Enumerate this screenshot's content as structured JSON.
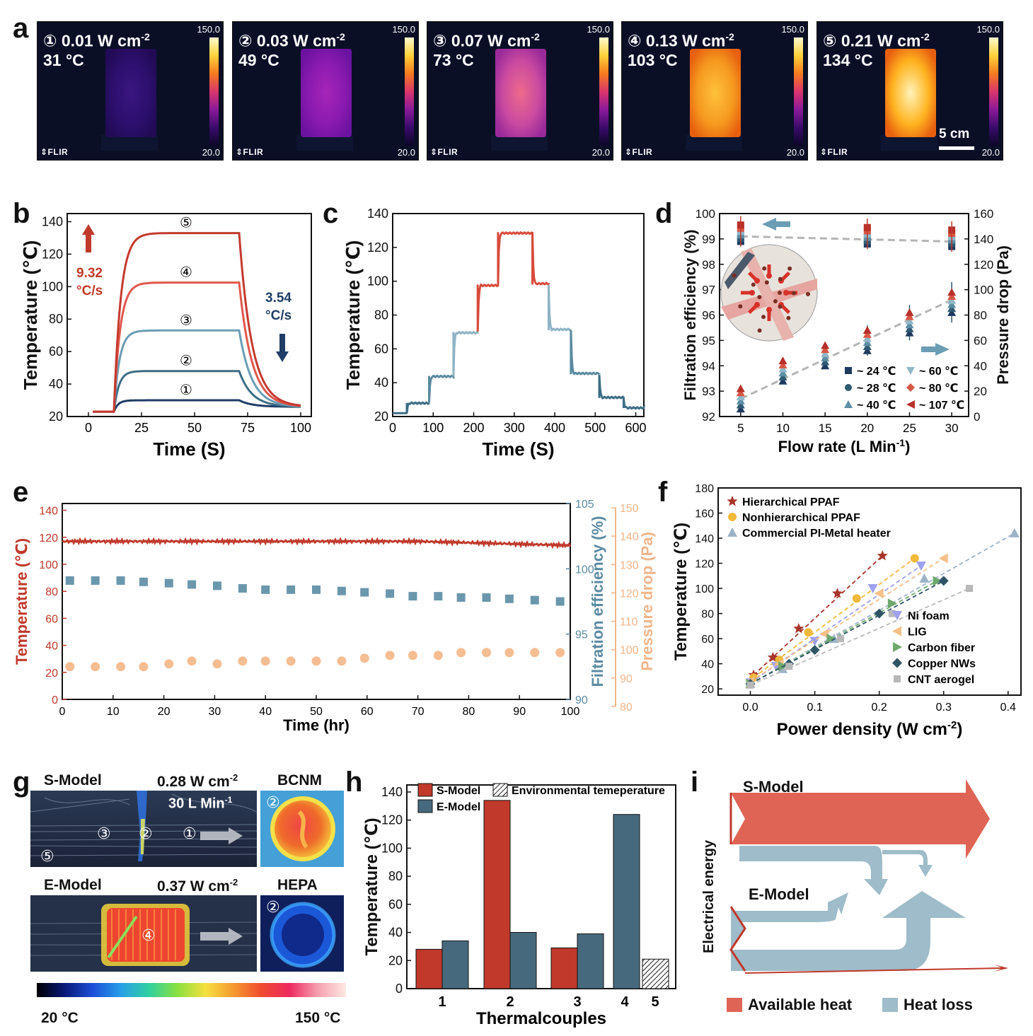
{
  "panel_labels": {
    "a": "a",
    "b": "b",
    "c": "c",
    "d": "d",
    "e": "e",
    "f": "f",
    "g": "g",
    "h": "h",
    "i": "i"
  },
  "thermal_images": [
    {
      "title": "① 0.01 W cm",
      "sup": "-2",
      "temp": "31 °C",
      "cb_max": "150.0",
      "cb_min": "20.0",
      "brand": "FLIR",
      "intensity": 0.12
    },
    {
      "title": "② 0.03 W cm",
      "sup": "-2",
      "temp": "49 °C",
      "cb_max": "150.0",
      "cb_min": "20.0",
      "brand": "FLIR",
      "intensity": 0.32
    },
    {
      "title": "③ 0.07 W cm",
      "sup": "-2",
      "temp": "73 °C",
      "cb_max": "150.0",
      "cb_min": "20.0",
      "brand": "FLIR",
      "intensity": 0.55
    },
    {
      "title": "④ 0.13 W cm",
      "sup": "-2",
      "temp": "103 °C",
      "cb_max": "150.0",
      "cb_min": "20.0",
      "brand": "FLIR",
      "intensity": 0.78
    },
    {
      "title": "⑤ 0.21 W cm",
      "sup": "-2",
      "temp": "134 °C",
      "cb_max": "150.0",
      "cb_min": "20.0",
      "brand": "FLIR",
      "intensity": 0.95
    }
  ],
  "scale_bar": "5 cm",
  "chart_data": [
    {
      "id": "b",
      "type": "line",
      "xlabel": "Time (S)",
      "ylabel": "Temperature (℃)",
      "xlim": [
        -10,
        105
      ],
      "ylim": [
        20,
        145
      ],
      "xticks": [
        "0",
        "25",
        "50",
        "75",
        "100"
      ],
      "yticks": [
        "20",
        "40",
        "60",
        "80",
        "100",
        "120",
        "140"
      ],
      "series": [
        {
          "name": "①",
          "plateau": 30,
          "color": "#1f3d66"
        },
        {
          "name": "②",
          "plateau": 48,
          "color": "#3d6d86"
        },
        {
          "name": "③",
          "plateau": 73,
          "color": "#6b9db5"
        },
        {
          "name": "④",
          "plateau": 102.5,
          "color": "#e0574c"
        },
        {
          "name": "⑤",
          "plateau": 133,
          "color": "#c53a2e"
        }
      ],
      "on_time": 12,
      "off_time": 71,
      "base": 23,
      "annotations": {
        "rate_up_value": "9.32",
        "rate_up_unit": "°C/s",
        "rate_down_value": "3.54",
        "rate_down_unit": "°C/s"
      },
      "curve_labels": [
        "①",
        "②",
        "③",
        "④",
        "⑤"
      ]
    },
    {
      "id": "c",
      "type": "line",
      "xlabel": "Time (S)",
      "ylabel": "Temperature (℃)",
      "xlim": [
        0,
        620
      ],
      "ylim": [
        20,
        140
      ],
      "xticks": [
        "0",
        "100",
        "200",
        "300",
        "400",
        "500",
        "600"
      ],
      "yticks": [
        "20",
        "40",
        "60",
        "80",
        "100",
        "120",
        "140"
      ],
      "steps": [
        {
          "t": 0,
          "v": 22
        },
        {
          "t": 35,
          "v": 28
        },
        {
          "t": 90,
          "v": 44
        },
        {
          "t": 150,
          "v": 70
        },
        {
          "t": 210,
          "v": 98
        },
        {
          "t": 260,
          "v": 129
        },
        {
          "t": 345,
          "v": 98
        },
        {
          "t": 385,
          "v": 71
        },
        {
          "t": 440,
          "v": 45
        },
        {
          "t": 510,
          "v": 31
        },
        {
          "t": 570,
          "v": 25
        },
        {
          "t": 620,
          "v": 25
        }
      ]
    },
    {
      "id": "d",
      "type": "scatter",
      "xlabel": "Flow rate (L Min",
      "xlabel_sup": "-1",
      "xlabel_end": ")",
      "ylabel_left": "Filtration efficiency (%)",
      "ylabel_right": "Pressure drop (Pa)",
      "x": [
        5,
        10,
        15,
        20,
        25,
        30
      ],
      "xlim": [
        2.5,
        32
      ],
      "ylim_left": [
        92,
        100
      ],
      "ylim_right": [
        0,
        160
      ],
      "xticks": [
        "5",
        "10",
        "15",
        "20",
        "25",
        "30"
      ],
      "yticks_left": [
        "92",
        "93",
        "94",
        "95",
        "96",
        "97",
        "98",
        "99",
        "100"
      ],
      "yticks_right": [
        "0",
        "20",
        "40",
        "60",
        "80",
        "100",
        "120",
        "140",
        "160"
      ],
      "efficiency": [
        99.2,
        null,
        null,
        99.0,
        null,
        99.0
      ],
      "pressure_drop": [
        14,
        36,
        48,
        60,
        74,
        90
      ],
      "legend": [
        "~ 24 ℃",
        "~ 60 ℃",
        "~ 28 ℃",
        "~ 80 ℃",
        "~ 40 ℃",
        "~ 107 ℃"
      ]
    },
    {
      "id": "e",
      "type": "line+scatter",
      "xlabel": "Time (hr)",
      "ylabel_left": "Temperature (℃)",
      "ylabel_right1": "Filtration efficiency (%)",
      "ylabel_right2": "Pressure drop (Pa)",
      "xlim": [
        0,
        100
      ],
      "ylim_left": [
        0,
        145
      ],
      "ylim_right1": [
        90,
        105
      ],
      "ylim_right2": [
        80,
        150
      ],
      "xticks": [
        "0",
        "10",
        "20",
        "30",
        "40",
        "50",
        "60",
        "70",
        "80",
        "90",
        "100"
      ],
      "yticks_left": [
        "0",
        "20",
        "40",
        "60",
        "80",
        "100",
        "120",
        "140"
      ],
      "yticks_right1": [
        "90",
        "95",
        "100",
        "105"
      ],
      "yticks_right2": [
        "80",
        "90",
        "100",
        "110",
        "120",
        "130",
        "140",
        "150"
      ],
      "temperature": {
        "start": 117,
        "end": 114
      },
      "efficiency_x": [
        1.5,
        6.5,
        11.5,
        16,
        21,
        25.5,
        30.5,
        35.5,
        40,
        45,
        50,
        55,
        59.5,
        64.5,
        69,
        74,
        78.5,
        83.5,
        88,
        93,
        98
      ],
      "efficiency": [
        99.1,
        99.1,
        99.1,
        99.0,
        98.9,
        98.8,
        98.7,
        98.5,
        98.4,
        98.4,
        98.4,
        98.3,
        98.2,
        98.1,
        97.9,
        97.9,
        97.8,
        97.8,
        97.7,
        97.6,
        97.5
      ],
      "pressure_x": [
        1.5,
        6.5,
        11.5,
        16,
        21,
        25.5,
        30.5,
        35.5,
        40,
        45,
        50,
        55,
        59.5,
        64.5,
        69,
        74,
        78.5,
        83.5,
        88,
        93,
        98
      ],
      "pressure": [
        94,
        94,
        94,
        94,
        95,
        96,
        95,
        96,
        96,
        96,
        96,
        96,
        97,
        98,
        98,
        98,
        99,
        99,
        99,
        99,
        99
      ]
    },
    {
      "id": "f",
      "type": "scatter",
      "xlabel": "Power density (W cm",
      "xlabel_sup": "-2",
      "xlabel_end": ")",
      "ylabel": "Temperature (℃)",
      "xlim": [
        -0.05,
        0.42
      ],
      "ylim": [
        15,
        180
      ],
      "xticks": [
        "0.0",
        "0.1",
        "0.2",
        "0.3",
        "0.4"
      ],
      "yticks": [
        "20",
        "40",
        "60",
        "80",
        "100",
        "120",
        "140",
        "160",
        "180"
      ],
      "series": [
        {
          "name": "Hierarchical PPAF",
          "marker": "star",
          "color": "#a8332a",
          "x": [
            0.005,
            0.035,
            0.075,
            0.135,
            0.205
          ],
          "y": [
            31,
            45,
            68,
            96,
            126
          ]
        },
        {
          "name": "Nonhierarchical PPAF",
          "marker": "circle",
          "color": "#f0b93c",
          "x": [
            0.005,
            0.045,
            0.09,
            0.165,
            0.255
          ],
          "y": [
            29,
            43,
            65,
            92,
            124
          ]
        },
        {
          "name": "Commercial PI-Metal heater",
          "marker": "triangle",
          "color": "#9bb3c8",
          "x": [
            0.0,
            0.05,
            0.13,
            0.27,
            0.41
          ],
          "y": [
            24,
            36,
            60,
            108,
            144
          ]
        },
        {
          "name": "Ni foam",
          "marker": "tri-down",
          "color": "#9ea0f0",
          "x": [
            0.0,
            0.04,
            0.1,
            0.19,
            0.265
          ],
          "y": [
            25,
            38,
            58,
            100,
            118
          ]
        },
        {
          "name": "LIG",
          "marker": "tri-left",
          "color": "#f5c08a",
          "x": [
            0.0,
            0.045,
            0.115,
            0.2,
            0.3
          ],
          "y": [
            26,
            40,
            64,
            96,
            124
          ]
        },
        {
          "name": "Carbon fiber",
          "marker": "tri-right",
          "color": "#6da86d",
          "x": [
            0.0,
            0.05,
            0.125,
            0.22,
            0.29
          ],
          "y": [
            24,
            38,
            60,
            88,
            106
          ]
        },
        {
          "name": "Copper NWs",
          "marker": "diamond",
          "color": "#2e5566",
          "x": [
            0.0,
            0.06,
            0.1,
            0.2,
            0.3
          ],
          "y": [
            24,
            40,
            51,
            80,
            106
          ]
        },
        {
          "name": "CNT aerogel",
          "marker": "square",
          "color": "#b8b8b8",
          "x": [
            0.0,
            0.06,
            0.14,
            0.22,
            0.34
          ],
          "y": [
            23,
            38,
            60,
            80,
            100
          ]
        }
      ]
    },
    {
      "id": "h",
      "type": "bar",
      "xlabel": "Thermalcouples",
      "ylabel": "Temperature (℃)",
      "ylim": [
        0,
        145
      ],
      "yticks": [
        "0",
        "20",
        "40",
        "60",
        "80",
        "100",
        "120",
        "140"
      ],
      "categories": [
        "1",
        "2",
        "3",
        "4",
        "5"
      ],
      "series": [
        {
          "name": "S-Model",
          "color": "#c0392b",
          "values": [
            28,
            134,
            29,
            null,
            null
          ]
        },
        {
          "name": "E-Model",
          "color": "#46697d",
          "values": [
            34,
            40,
            39,
            124,
            null
          ]
        },
        {
          "name": "Environmental temeperature",
          "color": "hatch",
          "values": [
            null,
            null,
            null,
            null,
            21
          ]
        }
      ]
    }
  ],
  "panel_g": {
    "s_model": "S-Model",
    "s_power": "0.28 W cm",
    "s_power_sup": "-2",
    "s_flow": "30 L Min",
    "s_flow_sup": "-1",
    "e_model": "E-Model",
    "e_power": "0.37 W cm",
    "e_power_sup": "-2",
    "bcnm": "BCNM",
    "hepa": "HEPA",
    "c1": "①",
    "c2": "②",
    "c3": "③",
    "c4": "④",
    "c5": "⑤",
    "scale_min": "20 °C",
    "scale_max": "150 °C"
  },
  "panel_i": {
    "s_model": "S-Model",
    "e_model": "E-Model",
    "y_label": "Electrical energy",
    "legend_available": "Available heat",
    "legend_loss": "Heat loss",
    "color_available": "#df6455",
    "color_loss": "#9ebcc9"
  }
}
